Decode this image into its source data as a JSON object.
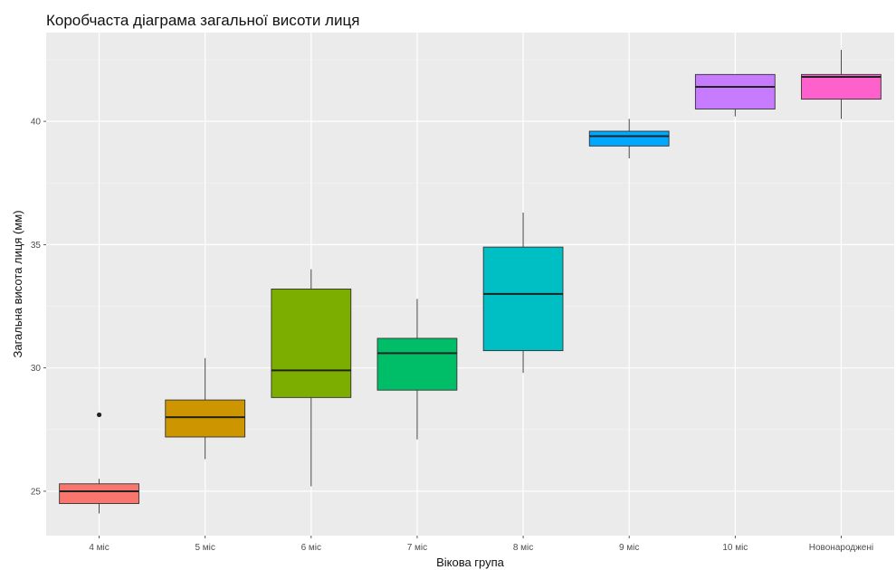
{
  "chart_data": {
    "type": "box",
    "title": "Коробчаста діаграма загальної висоти лиця",
    "xlabel": "Вікова група",
    "ylabel": "Загальна висота лиця (мм)",
    "ylim": [
      23.2,
      43.6
    ],
    "yticks": [
      25,
      30,
      35,
      40
    ],
    "grid": true,
    "legend": "none",
    "categories": [
      "4 міс",
      "5 міс",
      "6 міс",
      "7 міс",
      "8 міс",
      "9 міс",
      "10 міс",
      "Новонароджені"
    ],
    "boxes": [
      {
        "category": "4 міс",
        "min": 24.1,
        "q1": 24.5,
        "median": 25.0,
        "q3": 25.3,
        "max": 25.5,
        "outliers": [
          28.1
        ],
        "color": "#F8766D"
      },
      {
        "category": "5 міс",
        "min": 26.3,
        "q1": 27.2,
        "median": 28.0,
        "q3": 28.7,
        "max": 30.4,
        "outliers": [],
        "color": "#CD9600"
      },
      {
        "category": "6 міс",
        "min": 25.2,
        "q1": 28.8,
        "median": 29.9,
        "q3": 33.2,
        "max": 34.0,
        "outliers": [],
        "color": "#7CAE00"
      },
      {
        "category": "7 міс",
        "min": 27.1,
        "q1": 29.1,
        "median": 30.6,
        "q3": 31.2,
        "max": 32.8,
        "outliers": [],
        "color": "#00BE67"
      },
      {
        "category": "8 міс",
        "min": 29.8,
        "q1": 30.7,
        "median": 33.0,
        "q3": 34.9,
        "max": 36.3,
        "outliers": [],
        "color": "#00BFC4"
      },
      {
        "category": "9 міс",
        "min": 38.5,
        "q1": 39.0,
        "median": 39.4,
        "q3": 39.6,
        "max": 40.1,
        "outliers": [],
        "color": "#00A9FF"
      },
      {
        "category": "10 міс",
        "min": 40.2,
        "q1": 40.5,
        "median": 41.4,
        "q3": 41.9,
        "max": 41.9,
        "outliers": [],
        "color": "#C77CFF"
      },
      {
        "category": "Новонароджені",
        "min": 40.1,
        "q1": 40.9,
        "median": 41.8,
        "q3": 41.9,
        "max": 42.9,
        "outliers": [],
        "color": "#FF61CC"
      }
    ]
  }
}
